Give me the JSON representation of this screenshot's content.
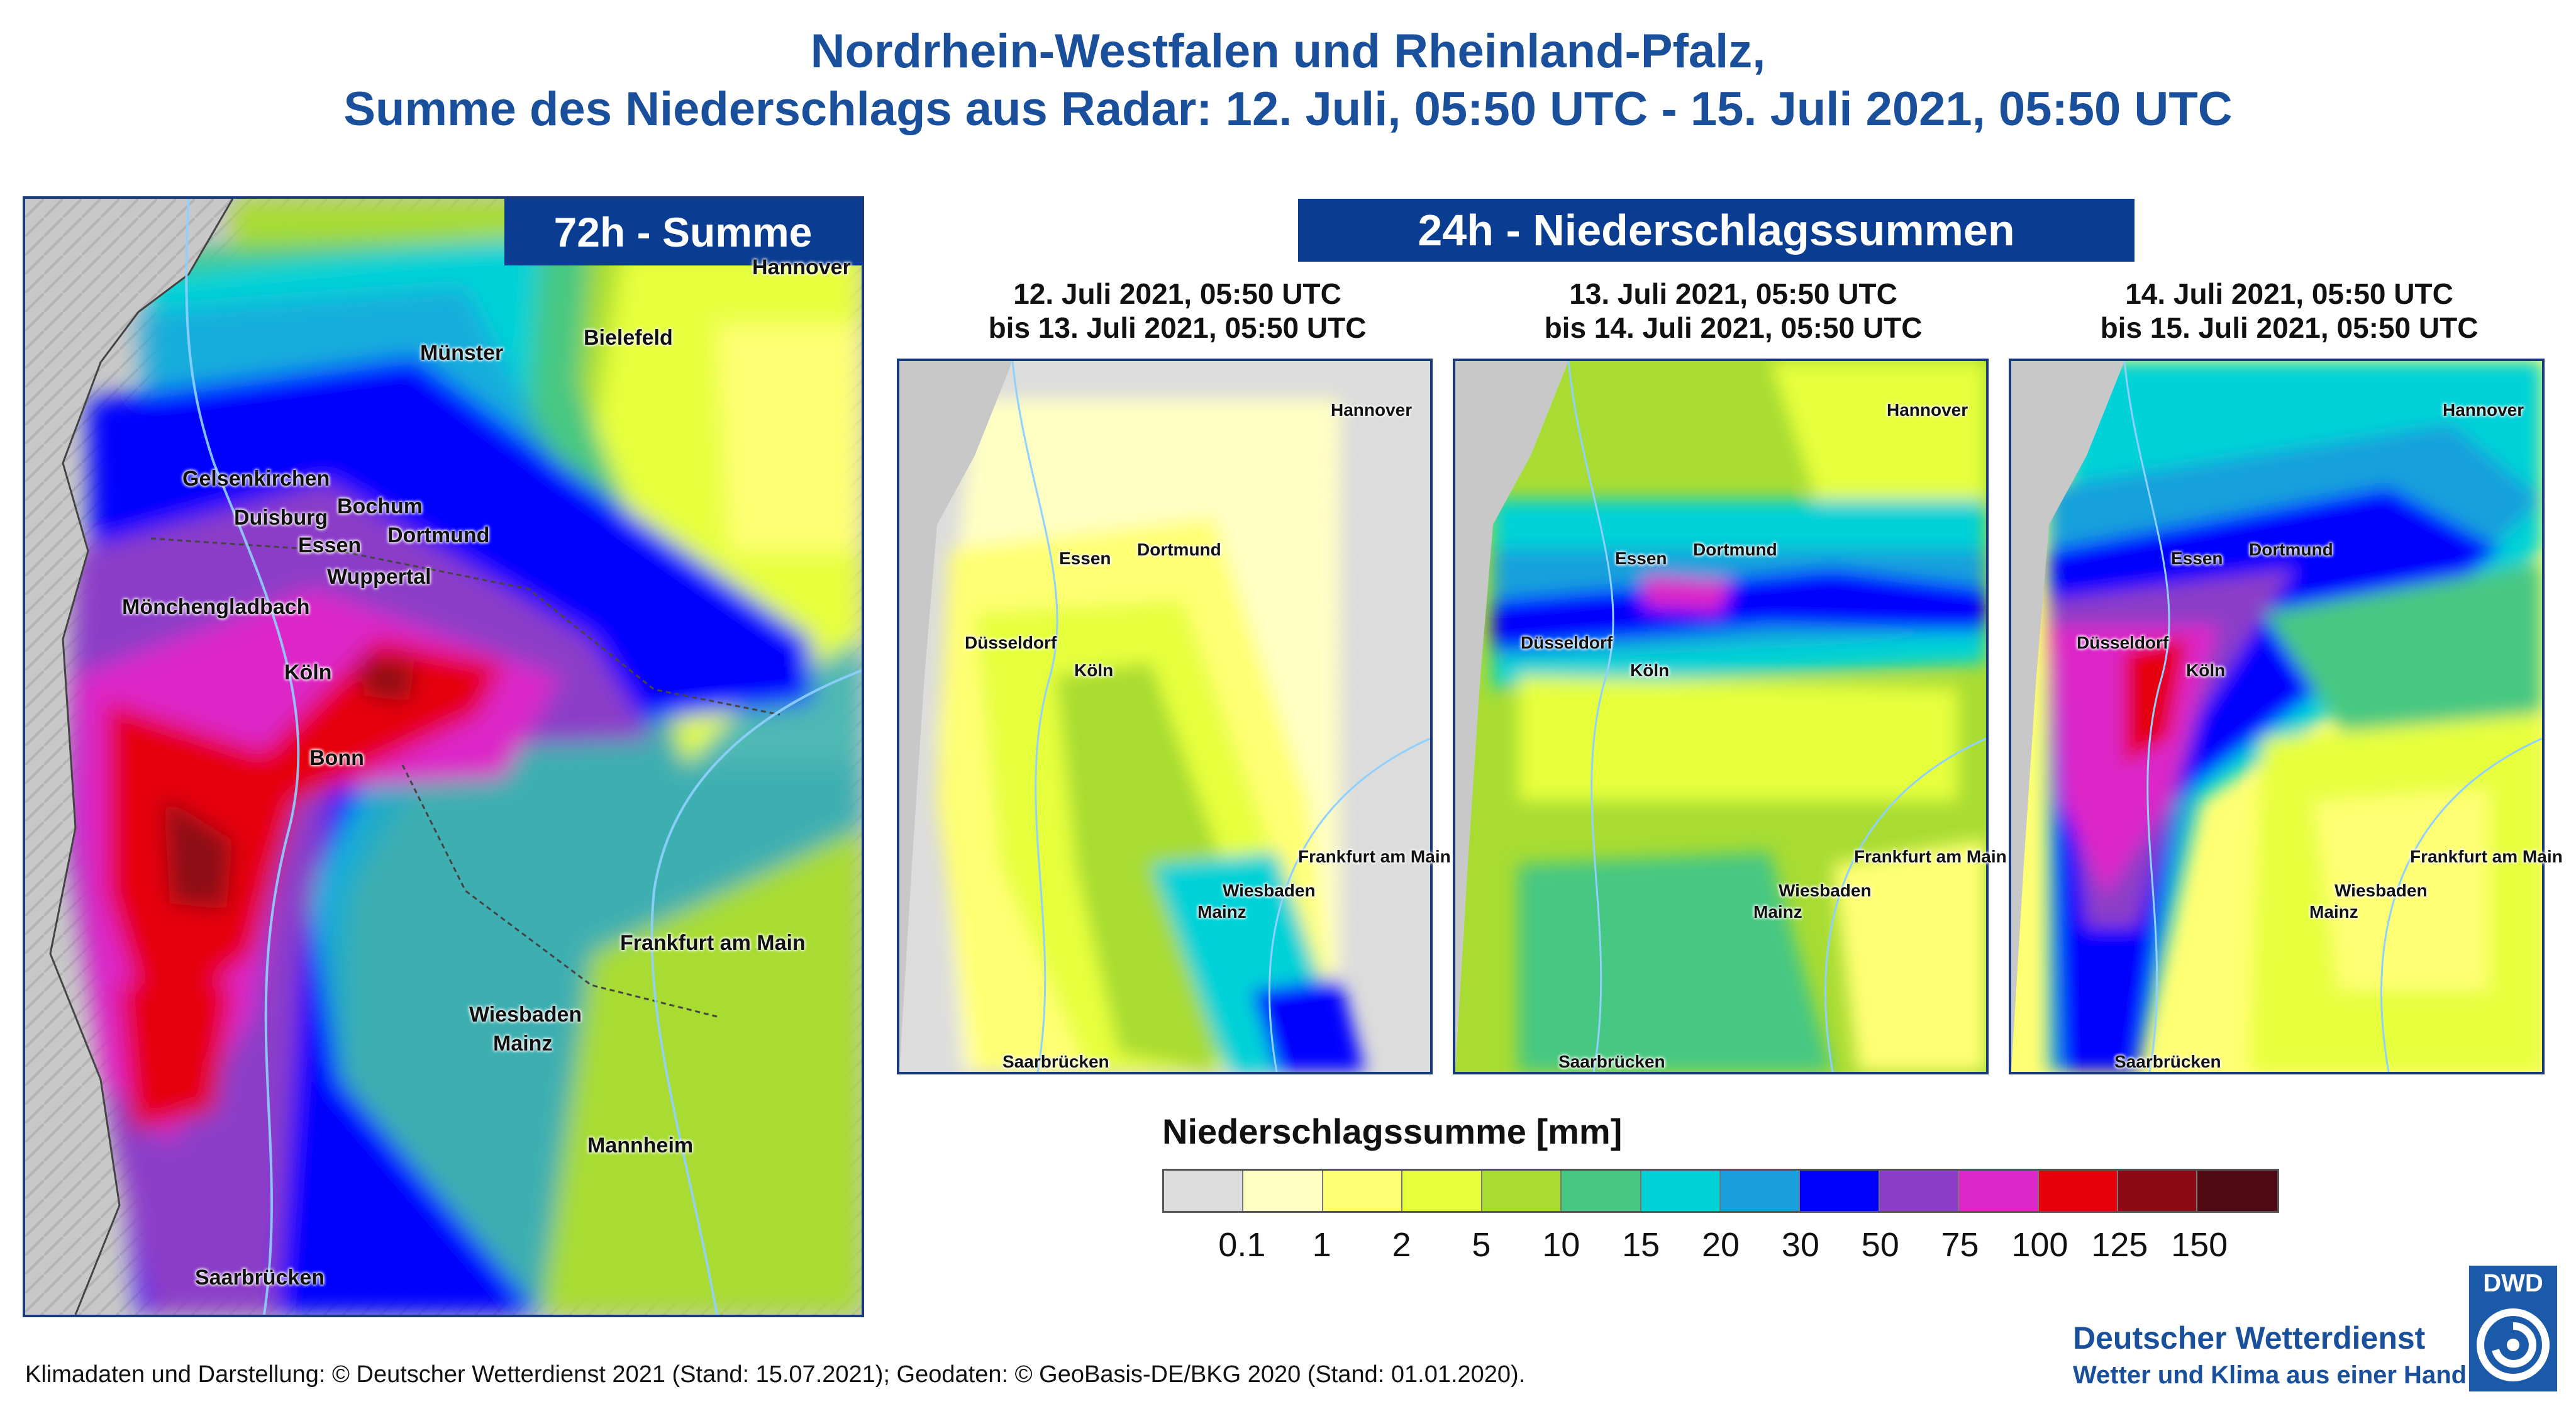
{
  "title": {
    "line1": "Nordrhein-Westfalen und Rheinland-Pfalz,",
    "line2": "Summe des Niederschlags aus Radar: 12. Juli, 05:50 UTC - 15. Juli 2021, 05:50 UTC"
  },
  "main_map": {
    "heading": "72h - Summe",
    "cities": [
      "Hannover",
      "Münster",
      "Bielefeld",
      "Gelsenkirchen",
      "Bochum",
      "Duisburg",
      "Dortmund",
      "Essen",
      "Wuppertal",
      "Mönchengladbach",
      "Köln",
      "Bonn",
      "Frankfurt am Main",
      "Wiesbaden",
      "Mainz",
      "Mannheim",
      "Saarbrücken"
    ]
  },
  "daily": {
    "heading": "24h - Niederschlagssummen",
    "panels": [
      {
        "line1": "12. Juli 2021, 05:50 UTC",
        "line2": "bis 13. Juli 2021, 05:50 UTC"
      },
      {
        "line1": "13. Juli 2021, 05:50 UTC",
        "line2": "bis 14. Juli 2021, 05:50 UTC"
      },
      {
        "line1": "14. Juli 2021, 05:50 UTC",
        "line2": "bis 15. Juli 2021, 05:50 UTC"
      }
    ],
    "cities": [
      "Hannover",
      "Essen",
      "Dortmund",
      "Düsseldorf",
      "Köln",
      "Frankfurt am Main",
      "Wiesbaden",
      "Mainz",
      "Saarbrücken"
    ]
  },
  "legend": {
    "title": "Niederschlagssumme [mm]",
    "colors": [
      "#dcdcdc",
      "#ffffc4",
      "#ffff73",
      "#e6ff3c",
      "#a8dc32",
      "#46c882",
      "#00d2d7",
      "#19a0dc",
      "#0000ff",
      "#8c3cc8",
      "#dc28c8",
      "#e6000a",
      "#8c0a14",
      "#500a14"
    ],
    "ticks": [
      "0.1",
      "1",
      "2",
      "5",
      "10",
      "15",
      "20",
      "30",
      "50",
      "75",
      "100",
      "125",
      "150"
    ]
  },
  "footer": "Klimadaten und Darstellung: © Deutscher Wetterdienst 2021 (Stand: 15.07.2021); Geodaten: © GeoBasis-DE/BKG 2020 (Stand: 01.01.2020).",
  "brand": {
    "logo": "DWD",
    "name": "Deutscher Wetterdienst",
    "slogan": "Wetter und Klima aus einer Hand"
  }
}
